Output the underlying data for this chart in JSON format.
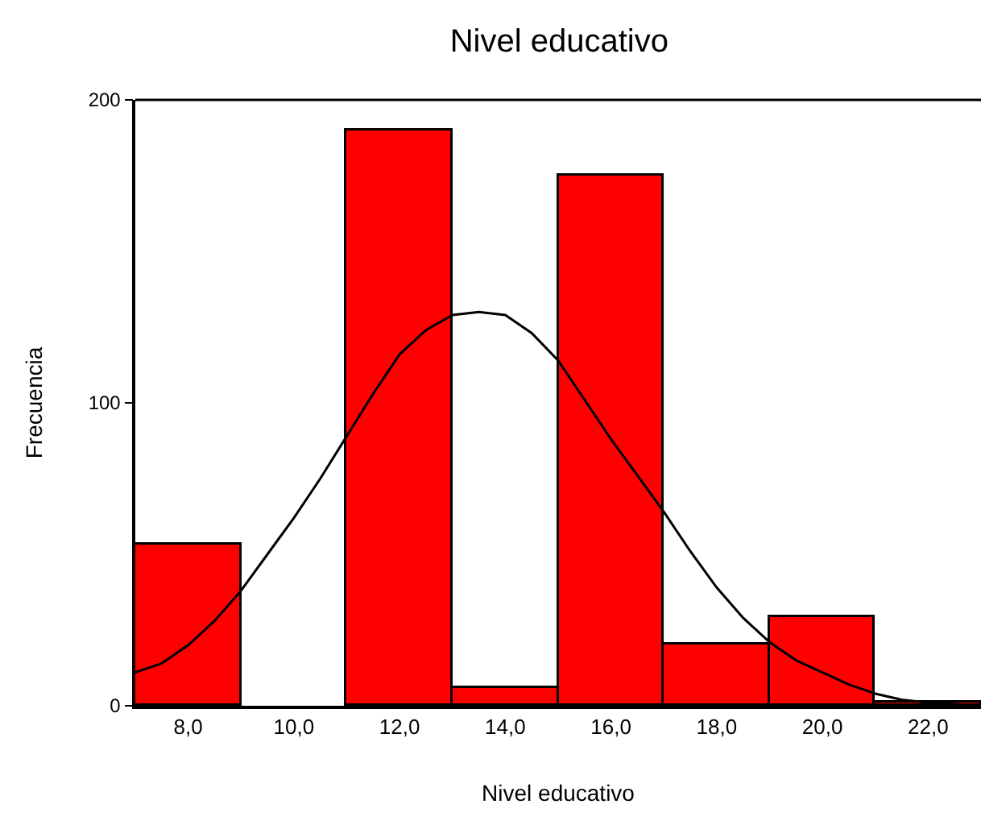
{
  "chart_data": {
    "type": "histogram",
    "title": "Nivel educativo",
    "xlabel": "Nivel educativo",
    "ylabel": "Frecuencia",
    "bins": [
      7,
      9,
      11,
      13,
      15,
      17,
      19,
      21,
      23
    ],
    "values": [
      53,
      0,
      190,
      6,
      175,
      20,
      29,
      1
    ],
    "color": "#ff0000",
    "series": [
      {
        "type": "line",
        "color": "#000000",
        "x": [
          7,
          7.5,
          8,
          8.5,
          9,
          9.5,
          10,
          10.5,
          11,
          11.5,
          12,
          12.5,
          13,
          13.5,
          14,
          14.5,
          15,
          15.5,
          16,
          16.5,
          17,
          17.5,
          18,
          18.5,
          19,
          19.5,
          20,
          20.5,
          21,
          21.5,
          22,
          22.7
        ],
        "values": [
          11,
          14,
          20,
          28,
          38,
          50,
          62,
          75,
          89,
          103,
          116,
          124,
          129,
          130,
          129,
          123,
          114,
          101,
          88,
          76,
          64,
          51,
          39,
          29,
          21,
          15,
          11,
          7,
          4,
          2,
          1,
          0.4
        ]
      }
    ],
    "xlim": [
      7,
      23
    ],
    "xticks": [
      {
        "value": 8,
        "label": "8,0"
      },
      {
        "value": 10,
        "label": "10,0"
      },
      {
        "value": 12,
        "label": "12,0"
      },
      {
        "value": 14,
        "label": "14,0"
      },
      {
        "value": 16,
        "label": "16,0"
      },
      {
        "value": 18,
        "label": "18,0"
      },
      {
        "value": 20,
        "label": "20,0"
      },
      {
        "value": 22,
        "label": "22,0"
      }
    ],
    "ylim": [
      0,
      200
    ],
    "yticks": [
      0,
      100,
      200
    ],
    "grid": false,
    "marker": "none",
    "line_style": "solid"
  }
}
